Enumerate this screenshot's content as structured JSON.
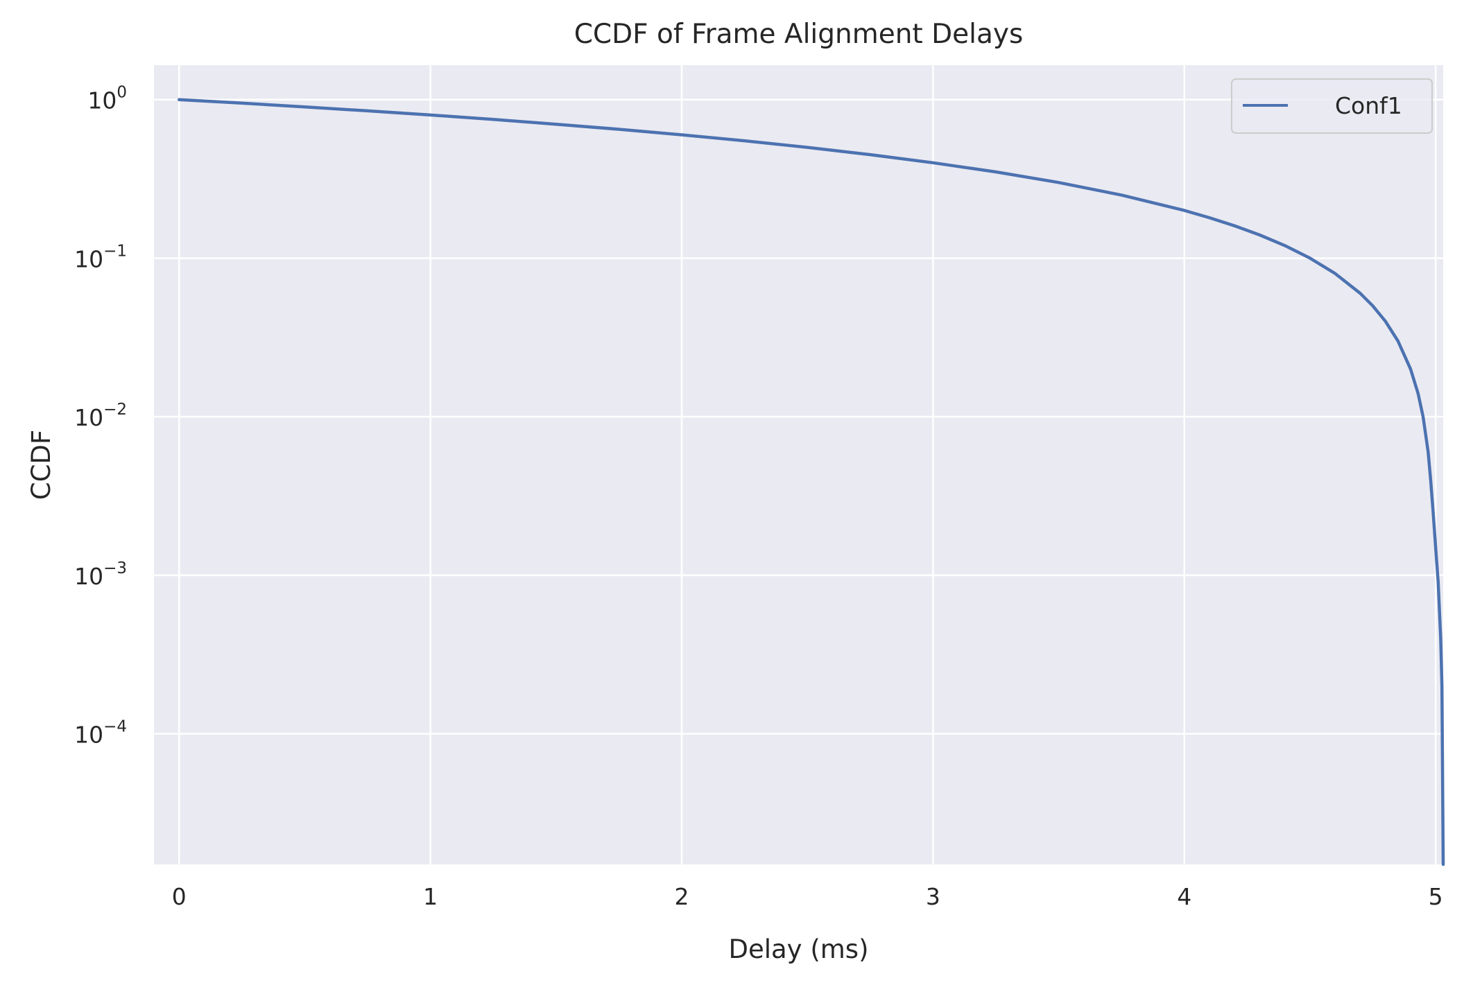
{
  "chart_data": {
    "type": "line",
    "title": "CCDF of Frame Alignment Delays",
    "xlabel": "Delay (ms)",
    "ylabel": "CCDF",
    "xlim": [
      -0.1,
      5.03
    ],
    "ylim": [
      1.5e-05,
      1.65
    ],
    "y_scale": "log",
    "grid": true,
    "legend_position": "top-right",
    "x_ticks": [
      {
        "value": 0,
        "label": "0"
      },
      {
        "value": 1,
        "label": "1"
      },
      {
        "value": 2,
        "label": "2"
      },
      {
        "value": 3,
        "label": "3"
      },
      {
        "value": 4,
        "label": "4"
      },
      {
        "value": 5,
        "label": "5"
      }
    ],
    "y_ticks": [
      {
        "value": 1,
        "base": "10",
        "exp": "0"
      },
      {
        "value": 0.1,
        "base": "10",
        "exp": "−1"
      },
      {
        "value": 0.01,
        "base": "10",
        "exp": "−2"
      },
      {
        "value": 0.001,
        "base": "10",
        "exp": "−3"
      },
      {
        "value": 0.0001,
        "base": "10",
        "exp": "−4"
      }
    ],
    "series": [
      {
        "name": "Conf1",
        "color": "#4c72b0",
        "x": [
          0,
          0.25,
          0.5,
          0.75,
          1.0,
          1.25,
          1.5,
          1.75,
          2.0,
          2.25,
          2.5,
          2.75,
          3.0,
          3.25,
          3.5,
          3.75,
          4.0,
          4.1,
          4.2,
          4.3,
          4.4,
          4.5,
          4.6,
          4.7,
          4.75,
          4.8,
          4.85,
          4.9,
          4.93,
          4.95,
          4.97,
          4.98,
          4.99,
          5.0,
          5.01,
          5.02,
          5.025,
          5.03
        ],
        "y": [
          1.0,
          0.95,
          0.9,
          0.85,
          0.8,
          0.75,
          0.7,
          0.65,
          0.6,
          0.55,
          0.5,
          0.45,
          0.4,
          0.35,
          0.3,
          0.25,
          0.2,
          0.18,
          0.16,
          0.14,
          0.12,
          0.1,
          0.08,
          0.06,
          0.05,
          0.04,
          0.03,
          0.02,
          0.014,
          0.01,
          0.006,
          0.004,
          0.0025,
          0.0015,
          0.0009,
          0.0004,
          0.0002,
          1.5e-05
        ]
      }
    ]
  }
}
